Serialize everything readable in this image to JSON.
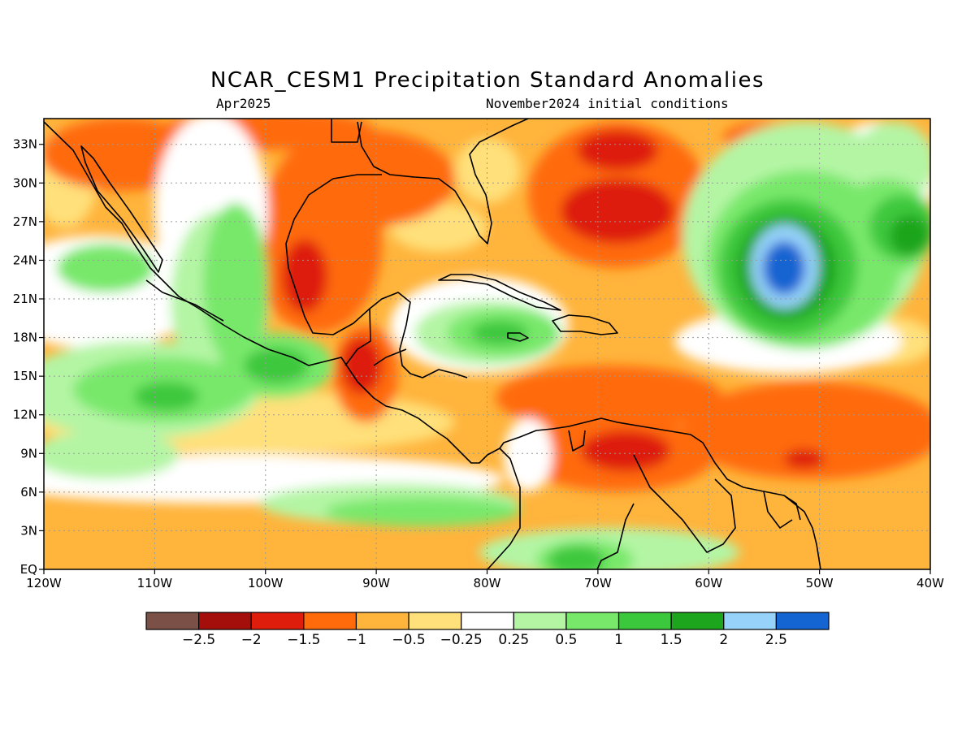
{
  "title": "NCAR_CESM1 Precipitation Standard Anomalies",
  "subtitle_left": "Apr2025",
  "subtitle_right": "November2024 initial conditions",
  "map": {
    "lon_range": [
      -120,
      -40
    ],
    "lat_range": [
      0,
      35
    ],
    "x_ticks": [
      "120W",
      "110W",
      "100W",
      "90W",
      "80W",
      "70W",
      "60W",
      "50W",
      "40W"
    ],
    "y_ticks": [
      "EQ",
      "3N",
      "6N",
      "9N",
      "12N",
      "15N",
      "18N",
      "21N",
      "24N",
      "27N",
      "30N",
      "33N"
    ],
    "grid": "dotted",
    "ocean_color": "#ffffff",
    "coastline_color": "#000000"
  },
  "colorbar": {
    "colors": [
      "#7b5147",
      "#a50f0b",
      "#de1d0c",
      "#ff6a0a",
      "#ffb43c",
      "#ffe07a",
      "#ffffff",
      "#b4f5a4",
      "#78e86a",
      "#3cc83c",
      "#1ea51e",
      "#96d2fa",
      "#1464d2"
    ],
    "labels": [
      "−2.5",
      "−2",
      "−1.5",
      "−1",
      "−0.5",
      "−0.25",
      "0.25",
      "0.5",
      "1",
      "1.5",
      "2",
      "2.5"
    ]
  }
}
